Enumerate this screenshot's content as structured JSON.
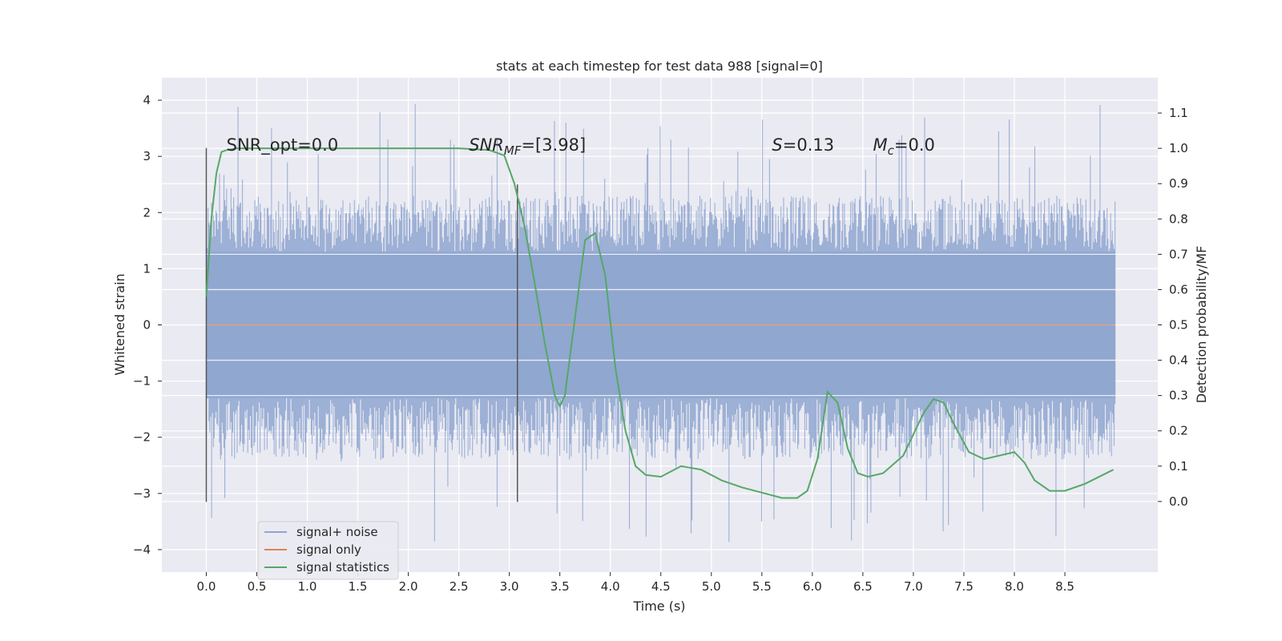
{
  "chart_data": {
    "type": "line",
    "title": "stats at each timestep for test data 988 [signal=0]",
    "xlabel": "Time (s)",
    "ylabel_left": "Whitened strain",
    "ylabel_right": "Detection probability/MF",
    "xlim": [
      -0.44,
      9.42
    ],
    "ylim_left": [
      -4.4,
      4.4
    ],
    "ylim_right": [
      -0.2,
      1.2
    ],
    "x_ticks": [
      "0.0",
      "0.5",
      "1.0",
      "1.5",
      "2.0",
      "2.5",
      "3.0",
      "3.5",
      "4.0",
      "4.5",
      "5.0",
      "5.5",
      "6.0",
      "6.5",
      "7.0",
      "7.5",
      "8.0",
      "8.5"
    ],
    "y_ticks_left": [
      "4",
      "3",
      "2",
      "1",
      "0",
      "−1",
      "−2",
      "−3",
      "−4"
    ],
    "y_ticks_right": [
      "1.1",
      "1.0",
      "0.9",
      "0.8",
      "0.7",
      "0.6",
      "0.5",
      "0.4",
      "0.3",
      "0.2",
      "0.1",
      "0.0"
    ],
    "grid": true,
    "legend_position": "lower-left",
    "series": [
      {
        "name": "signal+ noise",
        "color": "#8fa6d0",
        "axis": "left",
        "x_range": [
          0.0,
          9.0
        ],
        "envelope_core": [
          -1.3,
          1.3
        ],
        "envelope_typical": [
          -2.4,
          2.3
        ],
        "envelope_peaks": [
          -3.9,
          4.0
        ]
      },
      {
        "name": "signal only",
        "color": "#dd8452",
        "axis": "left",
        "x": [
          0.0,
          9.0
        ],
        "y": [
          0.0,
          0.0
        ]
      },
      {
        "name": "signal statistics",
        "color": "#55a868",
        "axis": "right",
        "x": [
          0.0,
          0.05,
          0.1,
          0.15,
          0.2,
          0.3,
          0.5,
          1.0,
          2.0,
          2.5,
          2.8,
          2.95,
          3.05,
          3.15,
          3.25,
          3.35,
          3.45,
          3.5,
          3.55,
          3.65,
          3.75,
          3.85,
          3.95,
          4.05,
          4.15,
          4.25,
          4.35,
          4.5,
          4.7,
          4.9,
          5.1,
          5.3,
          5.5,
          5.7,
          5.85,
          5.95,
          6.05,
          6.15,
          6.25,
          6.35,
          6.45,
          6.55,
          6.7,
          6.9,
          7.1,
          7.2,
          7.3,
          7.4,
          7.55,
          7.7,
          7.85,
          8.0,
          8.1,
          8.2,
          8.35,
          8.5,
          8.7,
          8.98
        ],
        "y": [
          0.58,
          0.8,
          0.93,
          0.99,
          0.995,
          1.0,
          1.0,
          1.0,
          1.0,
          1.0,
          0.995,
          0.98,
          0.9,
          0.78,
          0.62,
          0.45,
          0.3,
          0.27,
          0.3,
          0.52,
          0.74,
          0.76,
          0.64,
          0.38,
          0.2,
          0.1,
          0.075,
          0.07,
          0.1,
          0.09,
          0.06,
          0.04,
          0.025,
          0.01,
          0.01,
          0.03,
          0.12,
          0.31,
          0.28,
          0.15,
          0.08,
          0.07,
          0.08,
          0.13,
          0.25,
          0.29,
          0.28,
          0.22,
          0.14,
          0.12,
          0.13,
          0.14,
          0.11,
          0.06,
          0.03,
          0.03,
          0.05,
          0.09
        ]
      }
    ],
    "vertical_markers": [
      {
        "x": 0.0,
        "ylim": [
          -3.15,
          3.15
        ]
      },
      {
        "x": 3.08,
        "ylim": [
          -3.15,
          2.5
        ]
      }
    ],
    "annotations": [
      {
        "x": 0.2,
        "y": 3.2,
        "text": "SNR_opt=0.0",
        "italic": false
      },
      {
        "x": 2.6,
        "y": 3.2,
        "text": "SNR_MF=[3.98]",
        "italic": true
      },
      {
        "x": 5.6,
        "y": 3.2,
        "text": "S=0.13",
        "italic": true
      },
      {
        "x": 6.6,
        "y": 3.2,
        "text": "M_c=0.0",
        "italic": true
      }
    ]
  }
}
